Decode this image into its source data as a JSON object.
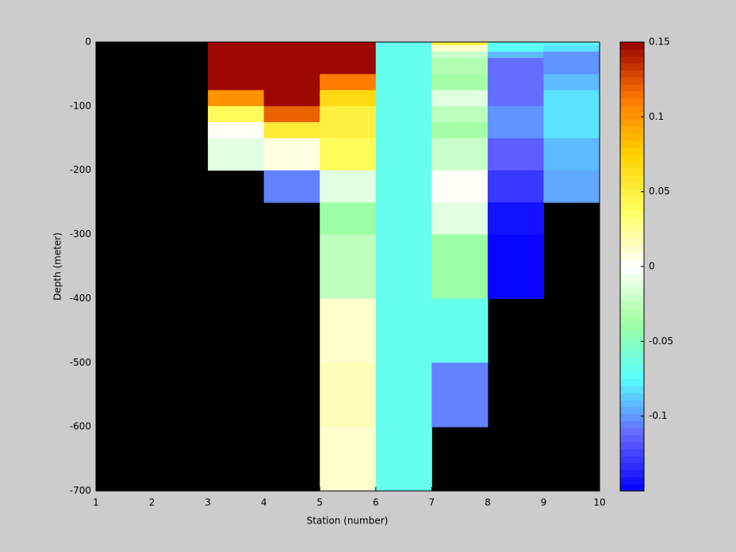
{
  "chart_data": {
    "type": "heatmap",
    "xlabel": "Station (number)",
    "ylabel": "Depth (meter)",
    "x": [
      1,
      2,
      3,
      4,
      5,
      6,
      7,
      8,
      9,
      10
    ],
    "y": [
      0,
      -5,
      -15,
      -25,
      -50,
      -75,
      -100,
      -125,
      -150,
      -200,
      -250,
      -300,
      -400,
      -500,
      -600,
      -700
    ],
    "values": [
      [
        null,
        null,
        0.15,
        0.15,
        0.15,
        -0.07,
        0.05,
        -0.075,
        -0.075
      ],
      [
        null,
        null,
        0.15,
        0.15,
        0.15,
        -0.07,
        0.01,
        -0.075,
        -0.08
      ],
      [
        null,
        null,
        0.15,
        0.15,
        0.15,
        -0.07,
        -0.02,
        -0.09,
        -0.1
      ],
      [
        null,
        null,
        0.15,
        0.15,
        0.15,
        -0.07,
        -0.03,
        -0.11,
        -0.1
      ],
      [
        null,
        null,
        0.15,
        0.15,
        0.11,
        -0.07,
        -0.035,
        -0.11,
        -0.09
      ],
      [
        null,
        null,
        0.1,
        0.15,
        0.07,
        -0.07,
        -0.01,
        -0.11,
        -0.08
      ],
      [
        null,
        null,
        0.04,
        0.12,
        0.05,
        -0.07,
        -0.025,
        -0.1,
        -0.08
      ],
      [
        null,
        null,
        0,
        0.055,
        0.05,
        -0.07,
        -0.035,
        -0.1,
        -0.08
      ],
      [
        null,
        null,
        -0.01,
        0.005,
        0.04,
        -0.07,
        -0.02,
        -0.115,
        -0.09
      ],
      [
        null,
        null,
        null,
        -0.105,
        -0.01,
        -0.07,
        0,
        -0.13,
        -0.095
      ],
      [
        null,
        null,
        null,
        null,
        -0.04,
        -0.07,
        -0.01,
        -0.145,
        null
      ],
      [
        null,
        null,
        null,
        null,
        -0.025,
        -0.07,
        -0.04,
        -0.15,
        null
      ],
      [
        null,
        null,
        null,
        null,
        0.01,
        -0.07,
        -0.07,
        null,
        null
      ],
      [
        null,
        null,
        null,
        null,
        0.015,
        -0.07,
        -0.105,
        null,
        null
      ],
      [
        null,
        null,
        null,
        null,
        0.01,
        -0.07,
        null,
        null,
        null
      ]
    ],
    "xlim": [
      1,
      10
    ],
    "xticks": [
      1,
      2,
      3,
      4,
      5,
      6,
      7,
      8,
      9,
      10
    ],
    "ylim": [
      -700,
      0
    ],
    "yticks": [
      0,
      -100,
      -200,
      -300,
      -400,
      -500,
      -600,
      -700
    ],
    "clim": [
      -0.15,
      0.15
    ],
    "cticks": [
      0.15,
      0.1,
      0.05,
      0,
      -0.05,
      -0.1
    ],
    "colormap": [
      "#0000ff",
      "#6464ff",
      "#58ffff",
      "#a0ffa0",
      "#ffffff",
      "#ffff60",
      "#ffd200",
      "#ff7800",
      "#960000"
    ],
    "nan_color": "#000000"
  }
}
